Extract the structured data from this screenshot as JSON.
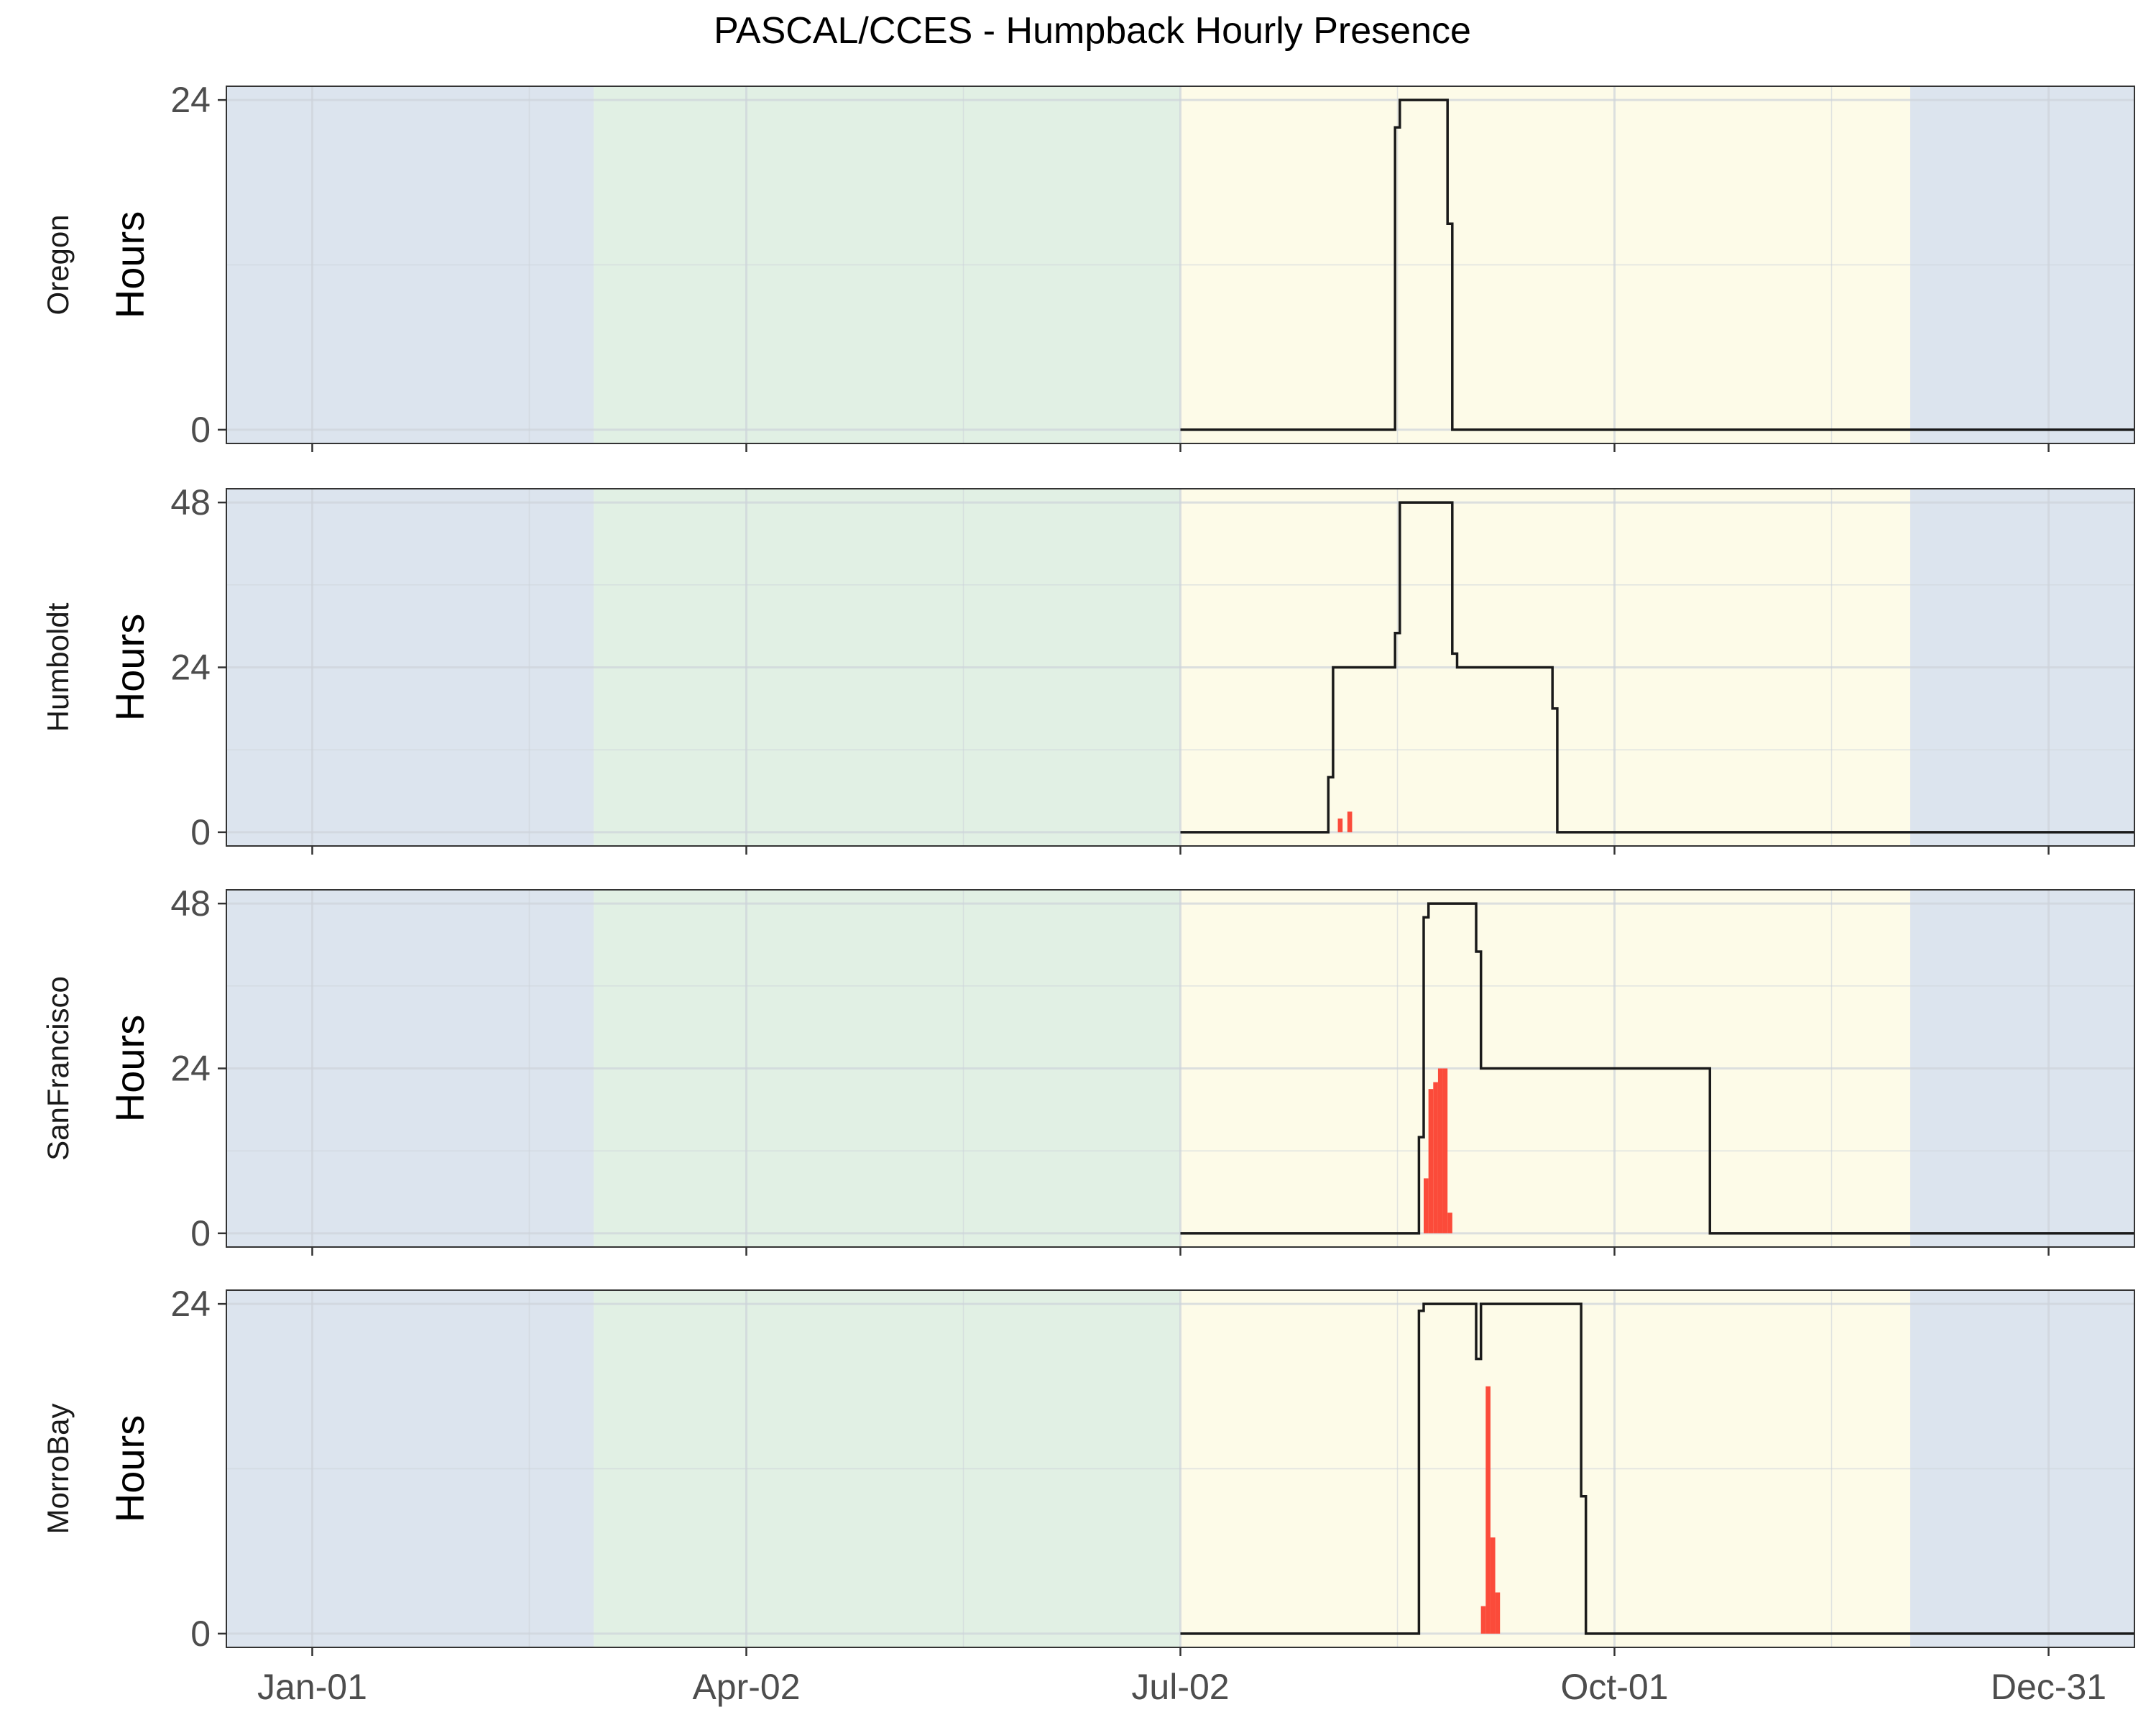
{
  "chart_data": {
    "type": "area",
    "title": "PASCAL/CCES - Humpback Hourly Presence",
    "xlabel": "",
    "ylabel": "Hours",
    "x_tick_labels": [
      "Jan-01",
      "Apr-02",
      "Jul-02",
      "Oct-01",
      "Dec-31"
    ],
    "x_tick_days": [
      1,
      92,
      183,
      274,
      365
    ],
    "xlim_days": [
      -17,
      383
    ],
    "season_bands": [
      {
        "name": "winter",
        "start_day": -17,
        "end_day": 60,
        "color": "#dce4ee"
      },
      {
        "name": "spring",
        "start_day": 60,
        "end_day": 183,
        "color": "#e1f0e4"
      },
      {
        "name": "summer",
        "start_day": 183,
        "end_day": 336,
        "color": "#fdfbe8"
      },
      {
        "name": "winter",
        "start_day": 336,
        "end_day": 383,
        "color": "#dce4ee"
      }
    ],
    "colors": {
      "line": "#1a1a1a",
      "bar": "#fb4b3a",
      "panel_border": "#333333",
      "grid": "#cdd3da"
    },
    "panels": [
      {
        "site": "Oregon",
        "ylim": [
          -1,
          25
        ],
        "y_ticks": [
          0,
          24
        ],
        "line_steps": [
          [
            183,
            0
          ],
          [
            228,
            0
          ],
          [
            228,
            22
          ],
          [
            229,
            22
          ],
          [
            229,
            24
          ],
          [
            239,
            24
          ],
          [
            239,
            15
          ],
          [
            240,
            15
          ],
          [
            240,
            0
          ],
          [
            383,
            0
          ]
        ],
        "bars": []
      },
      {
        "site": "Humboldt",
        "ylim": [
          -2,
          50
        ],
        "y_ticks": [
          0,
          24,
          48
        ],
        "line_steps": [
          [
            183,
            0
          ],
          [
            214,
            0
          ],
          [
            214,
            8
          ],
          [
            215,
            8
          ],
          [
            215,
            24
          ],
          [
            228,
            24
          ],
          [
            228,
            29
          ],
          [
            229,
            29
          ],
          [
            229,
            48
          ],
          [
            240,
            48
          ],
          [
            240,
            26
          ],
          [
            241,
            26
          ],
          [
            241,
            24
          ],
          [
            261,
            24
          ],
          [
            261,
            18
          ],
          [
            262,
            18
          ],
          [
            262,
            0
          ],
          [
            383,
            0
          ]
        ],
        "bars": [
          [
            216.5,
            2
          ],
          [
            218.5,
            3
          ]
        ]
      },
      {
        "site": "SanFrancisco",
        "ylim": [
          -2,
          50
        ],
        "y_ticks": [
          0,
          24,
          48
        ],
        "line_steps": [
          [
            183,
            0
          ],
          [
            233,
            0
          ],
          [
            233,
            14
          ],
          [
            234,
            14
          ],
          [
            234,
            46
          ],
          [
            235,
            46
          ],
          [
            235,
            48
          ],
          [
            245,
            48
          ],
          [
            245,
            41
          ],
          [
            246,
            41
          ],
          [
            246,
            24
          ],
          [
            294,
            24
          ],
          [
            294,
            0
          ],
          [
            383,
            0
          ]
        ],
        "bars": [
          [
            234.5,
            8
          ],
          [
            235.5,
            21
          ],
          [
            236.5,
            22
          ],
          [
            237.5,
            24
          ],
          [
            238.5,
            24
          ],
          [
            239.5,
            3
          ]
        ]
      },
      {
        "site": "MorroBay",
        "ylim": [
          -1,
          25
        ],
        "y_ticks": [
          0,
          24
        ],
        "line_steps": [
          [
            183,
            0
          ],
          [
            233,
            0
          ],
          [
            233,
            23.5
          ],
          [
            234,
            23.5
          ],
          [
            234,
            24
          ],
          [
            245,
            24
          ],
          [
            245,
            20
          ],
          [
            246,
            20
          ],
          [
            246,
            24
          ],
          [
            267,
            24
          ],
          [
            267,
            10
          ],
          [
            268,
            10
          ],
          [
            268,
            0
          ],
          [
            383,
            0
          ]
        ],
        "bars": [
          [
            246.5,
            2
          ],
          [
            247.5,
            18
          ],
          [
            248.5,
            7
          ],
          [
            249.5,
            3
          ]
        ]
      }
    ]
  }
}
